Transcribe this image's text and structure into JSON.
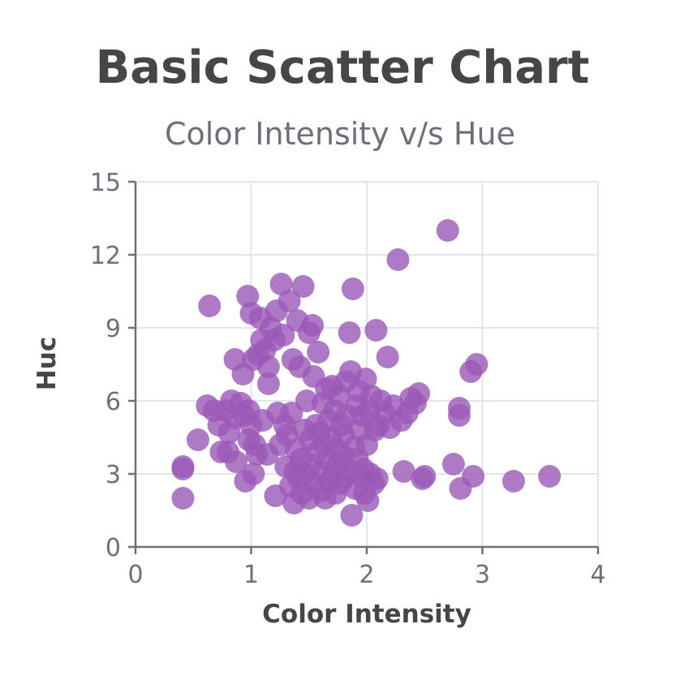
{
  "chart_data": {
    "type": "scatter",
    "title": "Basic Scatter Chart",
    "subtitle": "Color Intensity v/s Hue",
    "xlabel": "Color Intensity",
    "ylabel": "Huc",
    "xlim": [
      0,
      4
    ],
    "ylim": [
      0,
      15
    ],
    "x_ticks": [
      0,
      1,
      2,
      3,
      4
    ],
    "y_ticks": [
      0,
      3,
      6,
      9,
      12,
      15
    ],
    "grid": true,
    "legend": "none",
    "point_color": "#9b59b6",
    "points": [
      [
        0.41,
        2.0
      ],
      [
        0.41,
        3.2
      ],
      [
        0.41,
        3.3
      ],
      [
        0.54,
        4.4
      ],
      [
        0.64,
        9.9
      ],
      [
        0.62,
        5.8
      ],
      [
        0.68,
        5.6
      ],
      [
        0.72,
        5.0
      ],
      [
        0.74,
        3.9
      ],
      [
        0.78,
        5.6
      ],
      [
        0.81,
        4.7
      ],
      [
        0.8,
        3.9
      ],
      [
        0.83,
        6.0
      ],
      [
        0.86,
        5.3
      ],
      [
        0.87,
        3.5
      ],
      [
        0.86,
        7.7
      ],
      [
        0.91,
        5.9
      ],
      [
        0.94,
        5.4
      ],
      [
        0.93,
        7.1
      ],
      [
        0.95,
        2.7
      ],
      [
        0.98,
        5.6
      ],
      [
        0.98,
        4.4
      ],
      [
        0.97,
        10.3
      ],
      [
        1.0,
        9.6
      ],
      [
        1.0,
        5.0
      ],
      [
        1.02,
        3.0
      ],
      [
        1.03,
        4.2
      ],
      [
        1.02,
        7.7
      ],
      [
        1.05,
        3.8
      ],
      [
        1.06,
        7.9
      ],
      [
        1.08,
        9.4
      ],
      [
        1.09,
        8.5
      ],
      [
        1.1,
        5.2
      ],
      [
        1.12,
        8.1
      ],
      [
        1.14,
        3.8
      ],
      [
        1.15,
        7.4
      ],
      [
        1.15,
        6.7
      ],
      [
        1.17,
        9.0
      ],
      [
        1.2,
        8.5
      ],
      [
        1.21,
        2.1
      ],
      [
        1.22,
        9.7
      ],
      [
        1.23,
        5.5
      ],
      [
        1.25,
        4.2
      ],
      [
        1.26,
        10.8
      ],
      [
        1.28,
        8.7
      ],
      [
        1.29,
        5.0
      ],
      [
        1.3,
        3.3
      ],
      [
        1.31,
        4.6
      ],
      [
        1.33,
        10.1
      ],
      [
        1.34,
        2.5
      ],
      [
        1.35,
        5.5
      ],
      [
        1.36,
        7.7
      ],
      [
        1.37,
        1.8
      ],
      [
        1.38,
        3.1
      ],
      [
        1.39,
        4.0
      ],
      [
        1.4,
        9.3
      ],
      [
        1.41,
        2.8
      ],
      [
        1.42,
        7.4
      ],
      [
        1.43,
        3.6
      ],
      [
        1.44,
        2.2
      ],
      [
        1.45,
        10.7
      ],
      [
        1.46,
        4.8
      ],
      [
        1.47,
        3.0
      ],
      [
        1.48,
        6.0
      ],
      [
        1.5,
        8.8
      ],
      [
        1.5,
        2.0
      ],
      [
        1.51,
        4.4
      ],
      [
        1.52,
        3.4
      ],
      [
        1.53,
        9.1
      ],
      [
        1.54,
        7.0
      ],
      [
        1.55,
        2.6
      ],
      [
        1.56,
        5.0
      ],
      [
        1.57,
        3.9
      ],
      [
        1.58,
        8.0
      ],
      [
        1.59,
        4.7
      ],
      [
        1.6,
        2.3
      ],
      [
        1.61,
        3.1
      ],
      [
        1.62,
        5.9
      ],
      [
        1.63,
        4.2
      ],
      [
        1.64,
        2.0
      ],
      [
        1.65,
        6.5
      ],
      [
        1.66,
        3.6
      ],
      [
        1.67,
        5.2
      ],
      [
        1.68,
        2.7
      ],
      [
        1.69,
        4.5
      ],
      [
        1.7,
        6.6
      ],
      [
        1.71,
        3.0
      ],
      [
        1.72,
        5.6
      ],
      [
        1.73,
        2.2
      ],
      [
        1.74,
        4.0
      ],
      [
        1.75,
        3.4
      ],
      [
        1.76,
        6.2
      ],
      [
        1.77,
        2.6
      ],
      [
        1.78,
        5.0
      ],
      [
        1.79,
        3.8
      ],
      [
        1.8,
        4.6
      ],
      [
        1.81,
        2.9
      ],
      [
        1.82,
        6.8
      ],
      [
        1.83,
        5.4
      ],
      [
        1.84,
        3.2
      ],
      [
        1.85,
        8.8
      ],
      [
        1.86,
        7.2
      ],
      [
        1.87,
        1.3
      ],
      [
        1.88,
        10.6
      ],
      [
        1.89,
        4.1
      ],
      [
        1.9,
        2.4
      ],
      [
        1.91,
        5.8
      ],
      [
        1.92,
        3.6
      ],
      [
        1.93,
        6.4
      ],
      [
        1.94,
        4.8
      ],
      [
        1.95,
        2.9
      ],
      [
        1.96,
        5.4
      ],
      [
        1.97,
        3.2
      ],
      [
        1.98,
        2.2
      ],
      [
        1.99,
        6.9
      ],
      [
        2.0,
        4.2
      ],
      [
        2.01,
        1.9
      ],
      [
        2.02,
        5.6
      ],
      [
        2.03,
        3.0
      ],
      [
        2.04,
        6.2
      ],
      [
        2.06,
        2.6
      ],
      [
        2.07,
        4.8
      ],
      [
        2.08,
        8.9
      ],
      [
        2.09,
        2.8
      ],
      [
        2.1,
        5.0
      ],
      [
        2.12,
        6.0
      ],
      [
        2.15,
        5.5
      ],
      [
        2.18,
        7.8
      ],
      [
        2.2,
        4.9
      ],
      [
        2.23,
        5.8
      ],
      [
        2.27,
        11.8
      ],
      [
        2.3,
        5.2
      ],
      [
        2.32,
        3.1
      ],
      [
        2.35,
        5.5
      ],
      [
        2.38,
        6.1
      ],
      [
        2.42,
        5.9
      ],
      [
        2.45,
        6.3
      ],
      [
        2.48,
        2.8
      ],
      [
        2.5,
        2.9
      ],
      [
        2.7,
        13.0
      ],
      [
        2.75,
        3.4
      ],
      [
        2.8,
        5.7
      ],
      [
        2.8,
        5.4
      ],
      [
        2.81,
        2.4
      ],
      [
        2.9,
        7.2
      ],
      [
        2.95,
        7.5
      ],
      [
        2.92,
        2.9
      ],
      [
        3.27,
        2.7
      ],
      [
        3.58,
        2.9
      ]
    ]
  }
}
